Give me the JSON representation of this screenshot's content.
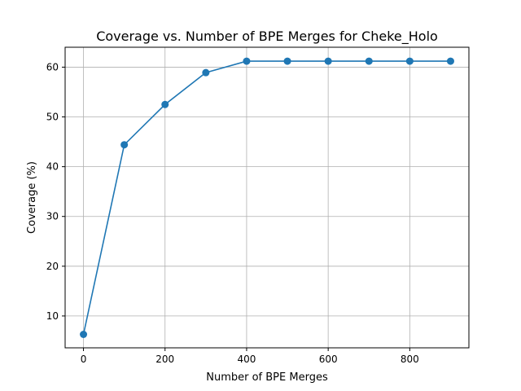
{
  "chart_data": {
    "type": "line",
    "title": "Coverage vs. Number of BPE Merges for Cheke_Holo",
    "xlabel": "Number of BPE Merges",
    "ylabel": "Coverage (%)",
    "xlim": [
      -45,
      945
    ],
    "ylim": [
      3.6,
      64.0
    ],
    "xticks": [
      0,
      200,
      400,
      600,
      800
    ],
    "yticks": [
      10,
      20,
      30,
      40,
      50,
      60
    ],
    "grid": true,
    "color": "#1f77b4",
    "series": [
      {
        "x": [
          0,
          100,
          200,
          300,
          400,
          500,
          600,
          700,
          800,
          900
        ],
        "y": [
          6.3,
          44.4,
          52.5,
          58.9,
          61.2,
          61.2,
          61.2,
          61.2,
          61.2,
          61.2
        ]
      }
    ]
  }
}
